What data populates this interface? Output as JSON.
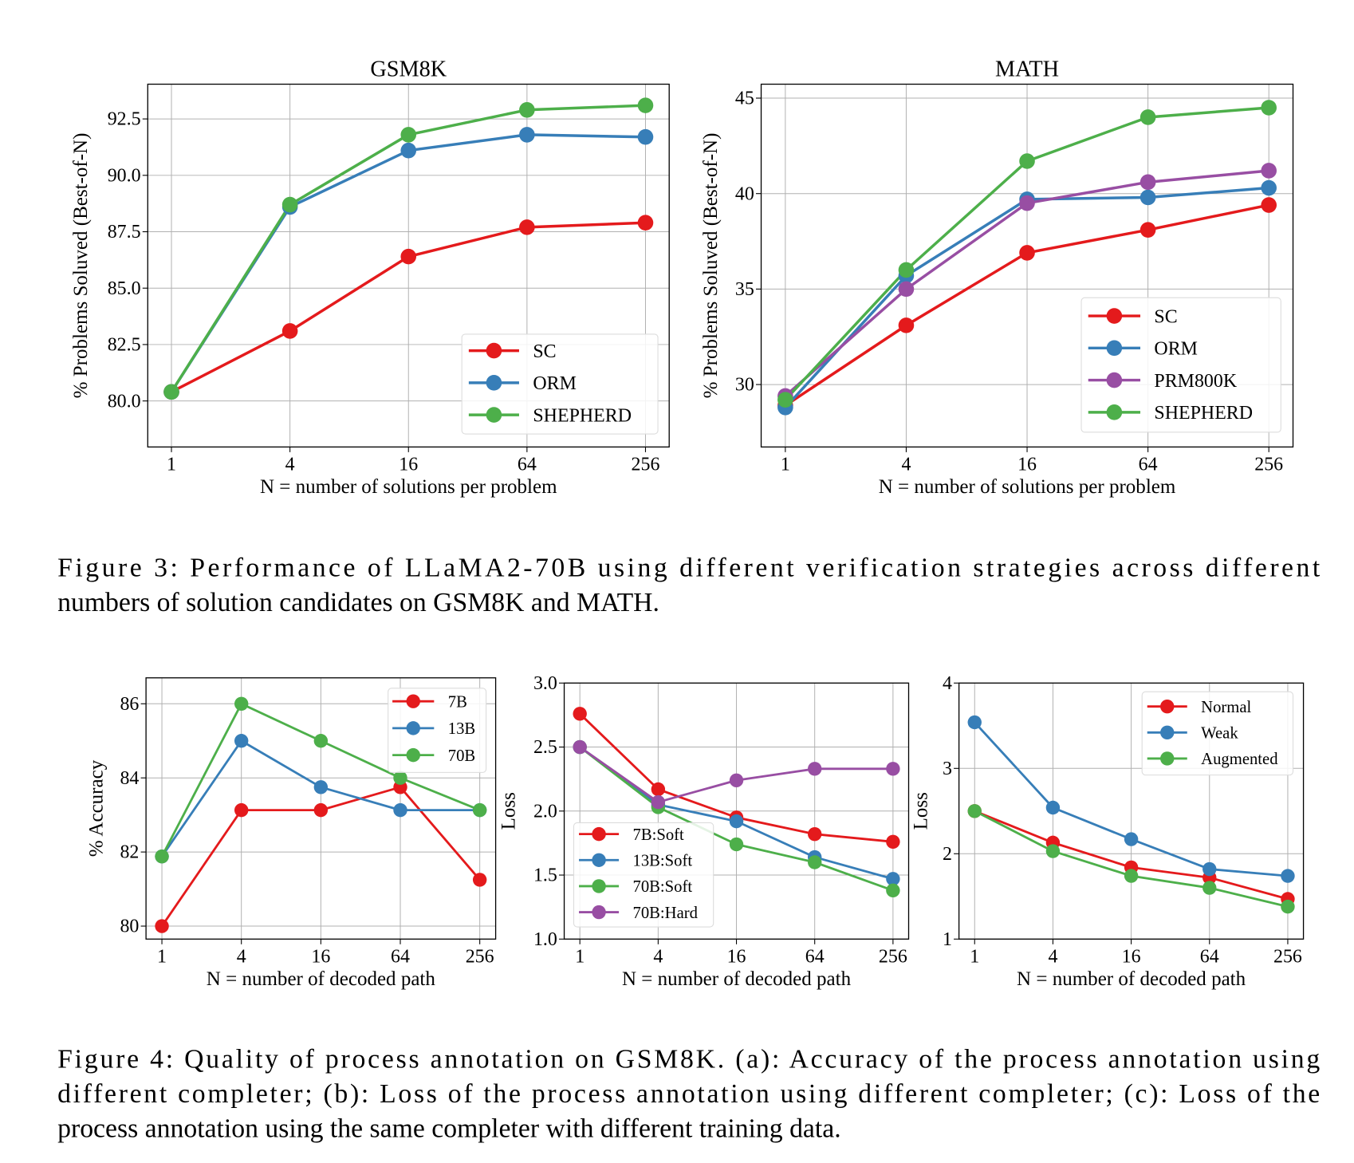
{
  "chart_data": [
    {
      "type": "line",
      "title": "GSM8K",
      "xlabel": "N = number of solutions per problem",
      "ylabel": "% Problems Soluved (Best-of-N)",
      "categories": [
        "1",
        "4",
        "16",
        "64",
        "256"
      ],
      "yticks": [
        "80.0",
        "82.5",
        "85.0",
        "87.5",
        "90.0",
        "92.5"
      ],
      "ylim": [
        77.96,
        94.04
      ],
      "grid": true,
      "legend_position": "lower right",
      "series": [
        {
          "name": "SC",
          "color": "#e41a1c",
          "values": [
            80.4,
            83.1,
            86.4,
            87.7,
            87.9
          ]
        },
        {
          "name": "ORM",
          "color": "#377eb8",
          "values": [
            80.4,
            88.6,
            91.1,
            91.8,
            91.7
          ]
        },
        {
          "name": "SHEPHERD",
          "color": "#4daf4a",
          "values": [
            80.4,
            88.7,
            91.8,
            92.9,
            93.1
          ]
        }
      ]
    },
    {
      "type": "line",
      "title": "MATH",
      "xlabel": "N = number of solutions per problem",
      "ylabel": "% Problems Soluved (Best-of-N)",
      "categories": [
        "1",
        "4",
        "16",
        "64",
        "256"
      ],
      "yticks": [
        "30",
        "35",
        "40",
        "45"
      ],
      "ylim": [
        26.73,
        45.73
      ],
      "grid": true,
      "legend_position": "lower right",
      "series": [
        {
          "name": "SC",
          "color": "#e41a1c",
          "values": [
            28.9,
            33.1,
            36.9,
            38.1,
            39.4
          ]
        },
        {
          "name": "ORM",
          "color": "#377eb8",
          "values": [
            28.8,
            35.7,
            39.7,
            39.8,
            40.3
          ]
        },
        {
          "name": "PRM800K",
          "color": "#984ea3",
          "values": [
            29.4,
            35.0,
            39.5,
            40.6,
            41.2
          ]
        },
        {
          "name": "SHEPHERD",
          "color": "#4daf4a",
          "values": [
            29.2,
            36.0,
            41.7,
            44.0,
            44.5
          ]
        }
      ]
    },
    {
      "type": "line",
      "title": "",
      "xlabel": "N = number of decoded path",
      "ylabel": "% Accuracy",
      "categories": [
        "1",
        "4",
        "16",
        "64",
        "256"
      ],
      "yticks": [
        "80",
        "82",
        "84",
        "86"
      ],
      "ylim": [
        79.65,
        86.7
      ],
      "grid": true,
      "legend_position": "upper right",
      "series": [
        {
          "name": "7B",
          "color": "#e41a1c",
          "values": [
            80.0,
            83.13,
            83.13,
            83.75,
            81.25
          ]
        },
        {
          "name": "13B",
          "color": "#377eb8",
          "values": [
            81.88,
            85.0,
            83.75,
            83.13,
            83.13
          ]
        },
        {
          "name": "70B",
          "color": "#4daf4a",
          "values": [
            81.88,
            86.0,
            85.0,
            84.0,
            83.13
          ]
        }
      ]
    },
    {
      "type": "line",
      "title": "",
      "xlabel": "N = number of decoded path",
      "ylabel": "Loss",
      "categories": [
        "1",
        "4",
        "16",
        "64",
        "256"
      ],
      "yticks": [
        "1.0",
        "1.5",
        "2.0",
        "2.5",
        "3.0"
      ],
      "ylim": [
        1.0,
        3.0
      ],
      "grid": true,
      "legend_position": "lower left",
      "series": [
        {
          "name": "7B:Soft",
          "color": "#e41a1c",
          "values": [
            2.76,
            2.17,
            1.95,
            1.82,
            1.76
          ]
        },
        {
          "name": "13B:Soft",
          "color": "#377eb8",
          "values": [
            2.5,
            2.05,
            1.92,
            1.64,
            1.47
          ]
        },
        {
          "name": "70B:Soft",
          "color": "#4daf4a",
          "values": [
            2.5,
            2.03,
            1.74,
            1.6,
            1.38
          ]
        },
        {
          "name": "70B:Hard",
          "color": "#984ea3",
          "values": [
            2.5,
            2.07,
            2.24,
            2.33,
            2.33
          ]
        }
      ]
    },
    {
      "type": "line",
      "title": "",
      "xlabel": "N = number of decoded path",
      "ylabel": "Loss",
      "categories": [
        "1",
        "4",
        "16",
        "64",
        "256"
      ],
      "yticks": [
        "1",
        "2",
        "3",
        "4"
      ],
      "ylim": [
        1.0,
        4.0
      ],
      "grid": true,
      "legend_position": "upper right",
      "series": [
        {
          "name": "Normal",
          "color": "#e41a1c",
          "values": [
            2.5,
            2.13,
            1.84,
            1.72,
            1.47
          ]
        },
        {
          "name": "Weak",
          "color": "#377eb8",
          "values": [
            3.54,
            2.54,
            2.17,
            1.82,
            1.74
          ]
        },
        {
          "name": "Augmented",
          "color": "#4daf4a",
          "values": [
            2.5,
            2.03,
            1.74,
            1.6,
            1.38
          ]
        }
      ]
    }
  ],
  "captions": {
    "figure3": [
      "Figure 3:  Performance of LLaMA2-70B using different verification strategies across different",
      "numbers of solution candidates on GSM8K and MATH."
    ],
    "figure4": [
      "Figure 4: Quality of process annotation on GSM8K. (a): Accuracy of the process annotation using",
      "different completer; (b): Loss of the process annotation using different completer; (c): Loss of the",
      "process annotation using the same completer with different training data."
    ]
  }
}
